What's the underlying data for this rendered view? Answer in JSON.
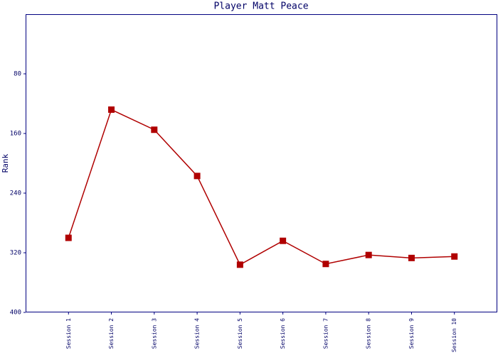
{
  "chart_data": {
    "type": "line",
    "title": "Player Matt Peace",
    "y_label": "Rank",
    "categories": [
      "Session 1",
      "Session 2",
      "Session 3",
      "Session 4",
      "Session 5",
      "Session 6",
      "Session 7",
      "Session 8",
      "Session 9",
      "Session 10"
    ],
    "series": [
      {
        "name": "Rank",
        "color": "#b00000",
        "values": [
          300,
          128,
          155,
          217,
          336,
          304,
          335,
          323,
          327,
          325
        ]
      }
    ],
    "ylim": [
      400,
      0
    ],
    "yticks": [
      80,
      160,
      240,
      320,
      400
    ],
    "grid": false
  }
}
